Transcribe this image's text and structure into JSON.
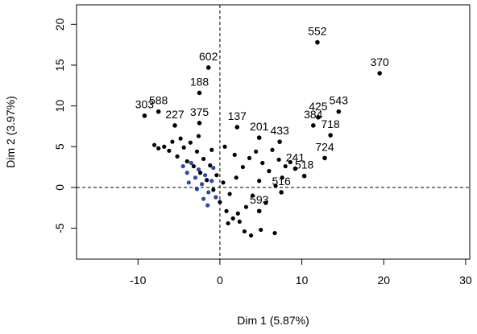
{
  "chart_data": {
    "type": "scatter",
    "xlabel": "Dim 1 (5.87%)",
    "ylabel": "Dim 2 (3.97%)",
    "xlim": [
      -17.5,
      30.5
    ],
    "ylim": [
      -8.8,
      22.4
    ],
    "xticks": [
      -10,
      0,
      10,
      20,
      30
    ],
    "yticks": [
      -5,
      0,
      5,
      10,
      15,
      20
    ],
    "reference_lines": {
      "x": 0,
      "y": 0,
      "style": "dashed"
    },
    "colors": {
      "points": "#000000",
      "supplementary": "#2b4aa8"
    },
    "labeled_points": [
      {
        "label": "552",
        "x": 11.9,
        "y": 17.8
      },
      {
        "label": "370",
        "x": 19.5,
        "y": 14.0
      },
      {
        "label": "602",
        "x": -1.4,
        "y": 14.7
      },
      {
        "label": "188",
        "x": -2.5,
        "y": 11.6
      },
      {
        "label": "303",
        "x": -9.2,
        "y": 8.8
      },
      {
        "label": "588",
        "x": -7.5,
        "y": 9.3
      },
      {
        "label": "227",
        "x": -5.5,
        "y": 7.6
      },
      {
        "label": "375",
        "x": -2.5,
        "y": 7.9
      },
      {
        "label": "137",
        "x": 2.1,
        "y": 7.4
      },
      {
        "label": "201",
        "x": 4.8,
        "y": 6.1
      },
      {
        "label": "433",
        "x": 7.3,
        "y": 5.6
      },
      {
        "label": "425",
        "x": 12.0,
        "y": 8.6
      },
      {
        "label": "543",
        "x": 14.5,
        "y": 9.3
      },
      {
        "label": "384",
        "x": 11.4,
        "y": 7.6
      },
      {
        "label": "718",
        "x": 13.5,
        "y": 6.4
      },
      {
        "label": "724",
        "x": 12.8,
        "y": 3.6
      },
      {
        "label": "241",
        "x": 9.2,
        "y": 2.3
      },
      {
        "label": "518",
        "x": 10.3,
        "y": 1.4
      },
      {
        "label": "516",
        "x": 7.5,
        "y": -0.6
      },
      {
        "label": "593",
        "x": 4.8,
        "y": -2.9
      }
    ],
    "cloud": {
      "points": [
        {
          "x": -8.0,
          "y": 5.2
        },
        {
          "x": -7.5,
          "y": 4.8
        },
        {
          "x": -6.8,
          "y": 5.0
        },
        {
          "x": -6.2,
          "y": 4.5
        },
        {
          "x": -5.8,
          "y": 5.6
        },
        {
          "x": -5.2,
          "y": 3.8
        },
        {
          "x": -4.8,
          "y": 6.0
        },
        {
          "x": -4.4,
          "y": 4.9
        },
        {
          "x": -4.0,
          "y": 3.2
        },
        {
          "x": -3.6,
          "y": 5.5
        },
        {
          "x": -3.2,
          "y": 2.6
        },
        {
          "x": -2.8,
          "y": 4.4
        },
        {
          "x": -2.4,
          "y": 1.8
        },
        {
          "x": -2.0,
          "y": 3.5
        },
        {
          "x": -1.6,
          "y": 0.9
        },
        {
          "x": -1.2,
          "y": 2.7
        },
        {
          "x": -0.8,
          "y": -0.3
        },
        {
          "x": -0.4,
          "y": 1.5
        },
        {
          "x": 0.0,
          "y": -1.8
        },
        {
          "x": 0.4,
          "y": 0.6
        },
        {
          "x": 0.8,
          "y": -2.9
        },
        {
          "x": 1.2,
          "y": -0.8
        },
        {
          "x": 1.6,
          "y": -3.8
        },
        {
          "x": 2.0,
          "y": 1.2
        },
        {
          "x": 2.4,
          "y": -4.2
        },
        {
          "x": 2.8,
          "y": 2.5
        },
        {
          "x": 3.2,
          "y": -2.4
        },
        {
          "x": 3.6,
          "y": 3.6
        },
        {
          "x": 4.0,
          "y": -1.0
        },
        {
          "x": 4.4,
          "y": 4.4
        },
        {
          "x": 4.8,
          "y": 0.8
        },
        {
          "x": 5.2,
          "y": 3.0
        },
        {
          "x": 5.6,
          "y": -1.9
        },
        {
          "x": 6.0,
          "y": 2.0
        },
        {
          "x": 6.4,
          "y": 4.6
        },
        {
          "x": 6.8,
          "y": 0.2
        },
        {
          "x": 7.2,
          "y": 3.4
        },
        {
          "x": 7.6,
          "y": 1.2
        },
        {
          "x": 8.0,
          "y": 2.6
        },
        {
          "x": 8.6,
          "y": 3.1
        },
        {
          "x": 3.0,
          "y": -5.4
        },
        {
          "x": 3.8,
          "y": -5.9
        },
        {
          "x": 5.0,
          "y": -5.2
        },
        {
          "x": 6.7,
          "y": -5.6
        },
        {
          "x": 1.0,
          "y": -4.4
        },
        {
          "x": 2.2,
          "y": -3.2
        },
        {
          "x": -1.0,
          "y": 4.6
        },
        {
          "x": -2.6,
          "y": 6.3
        },
        {
          "x": 0.6,
          "y": 5.0
        },
        {
          "x": 1.8,
          "y": 4.0
        }
      ],
      "supplementary": [
        {
          "x": -4.5,
          "y": 2.6
        },
        {
          "x": -4.0,
          "y": 1.8
        },
        {
          "x": -3.5,
          "y": 3.0
        },
        {
          "x": -3.0,
          "y": 1.2
        },
        {
          "x": -2.6,
          "y": 2.2
        },
        {
          "x": -2.2,
          "y": 0.4
        },
        {
          "x": -1.8,
          "y": 1.5
        },
        {
          "x": -1.4,
          "y": -0.6
        },
        {
          "x": -1.0,
          "y": 0.8
        },
        {
          "x": -2.0,
          "y": -1.4
        },
        {
          "x": -1.5,
          "y": -2.2
        },
        {
          "x": -0.8,
          "y": 2.4
        },
        {
          "x": -2.8,
          "y": -0.2
        },
        {
          "x": -3.8,
          "y": 0.6
        },
        {
          "x": -0.5,
          "y": -1.2
        }
      ]
    }
  }
}
